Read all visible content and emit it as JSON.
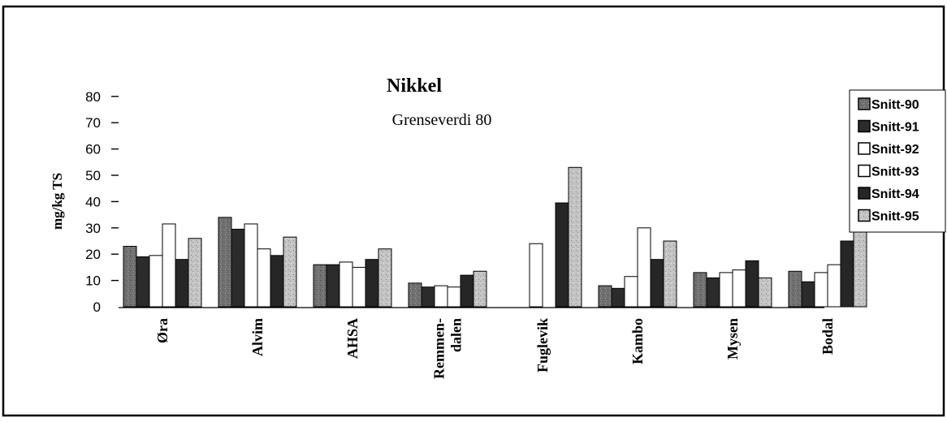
{
  "chart_data": {
    "type": "bar",
    "title": "Nikkel",
    "subtitle": "Grenseverdi 80",
    "ylabel": "mg/kg TS",
    "xlabel": "",
    "ylim": [
      0,
      80
    ],
    "yticks": [
      0,
      10,
      20,
      30,
      40,
      50,
      60,
      70,
      80
    ],
    "grid": false,
    "legend_position": "right",
    "categories": [
      "Øra",
      "Alvim",
      "AHSA",
      "Remmen-dalen",
      "Fuglevik",
      "Kambo",
      "Mysen",
      "Bodal"
    ],
    "category_lines": [
      [
        "Øra"
      ],
      [
        "Alvim"
      ],
      [
        "AHSA"
      ],
      [
        "Remmen-",
        "dalen"
      ],
      [
        "Fuglevik"
      ],
      [
        "Kambo"
      ],
      [
        "Mysen"
      ],
      [
        "Bodal"
      ]
    ],
    "series": [
      {
        "name": "Snitt-90",
        "values": [
          23,
          34,
          16,
          9,
          0,
          8,
          13,
          13.5
        ],
        "fill": "#6f6f6f",
        "pattern": "speckle-dark"
      },
      {
        "name": "Snitt-91",
        "values": [
          19,
          29.5,
          16,
          7.5,
          0,
          7,
          11,
          9.5
        ],
        "fill": "#2b2b2b",
        "pattern": "solid"
      },
      {
        "name": "Snitt-92",
        "values": [
          19.5,
          31.5,
          17,
          8,
          24,
          11.5,
          13,
          13
        ],
        "fill": "#ffffff",
        "pattern": "solid"
      },
      {
        "name": "Snitt-93",
        "values": [
          31.5,
          22,
          15,
          7.5,
          0,
          30,
          14,
          16
        ],
        "fill": "#ffffff",
        "pattern": "solid"
      },
      {
        "name": "Snitt-94",
        "values": [
          18,
          19.5,
          18,
          12,
          39.5,
          18,
          17.5,
          25
        ],
        "fill": "#262626",
        "pattern": "solid"
      },
      {
        "name": "Snitt-95",
        "values": [
          26,
          26.5,
          22,
          13.5,
          53,
          25,
          11,
          30.5
        ],
        "fill": "#b3b3b3",
        "pattern": "speckle-light"
      }
    ]
  },
  "colors": {
    "axis": "#000000",
    "frame": "#000000",
    "bar_stroke": "#000000"
  }
}
